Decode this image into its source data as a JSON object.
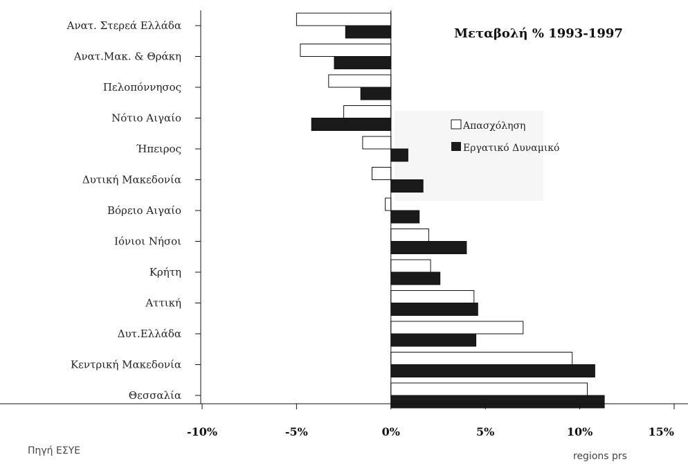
{
  "chart_data": {
    "type": "bar",
    "orientation": "horizontal",
    "title": "Μεταβολή % 1993-1997",
    "categories": [
      "Ανατ. Στερεά Ελλάδα",
      "Ανατ.Μακ. & Θράκη",
      "Πελοπόννησος",
      "Νότιο Αιγαίο",
      "Ήπειρος",
      "Δυτική Μακεδονία",
      "Βόρειο Αιγαίο",
      "Ιόνιοι Νήσοι",
      "Κρήτη",
      "Αττική",
      "Δυτ.Ελλάδα",
      "Κεντρική Μακεδονία",
      "Θεσσαλία"
    ],
    "series": [
      {
        "name": "Απασχόληση",
        "fill": "#ffffff",
        "values": [
          -5.0,
          -4.8,
          -3.3,
          -2.5,
          -1.5,
          -1.0,
          -0.3,
          2.0,
          2.1,
          4.4,
          7.0,
          9.6,
          10.4
        ]
      },
      {
        "name": "Εργατικό Δυναμικό",
        "fill": "#1a1a1a",
        "values": [
          -2.4,
          -3.0,
          -1.6,
          -4.2,
          0.9,
          1.7,
          1.5,
          4.0,
          2.6,
          4.6,
          4.5,
          10.8,
          11.3
        ]
      }
    ],
    "xlim": [
      -10,
      15
    ],
    "xticks": [
      "-10%",
      "-5%",
      "0%",
      "5%",
      "10%",
      "15%"
    ],
    "xtick_values": [
      -10,
      -5,
      0,
      5,
      10,
      15
    ],
    "legend_position": "right"
  },
  "source_text": "Πηγή ΕΣΥΕ",
  "footer_text": "regions prs"
}
